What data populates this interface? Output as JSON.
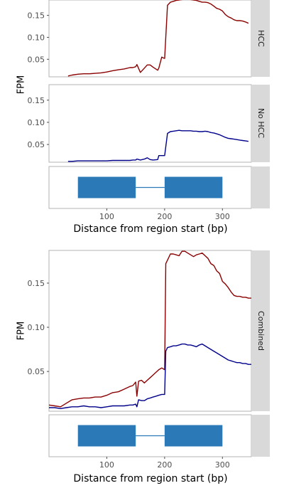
{
  "labels": {
    "fpm": "FPM",
    "distance": "Distance from region start (bp)",
    "hcc": "HCC",
    "no_hcc": "No HCC",
    "combined": "Combined"
  },
  "colors": {
    "hcc": "#8b0000",
    "no_hcc": "#00008b",
    "exon": "#2b79b6",
    "strip": "#d9d9d9",
    "border": "#b3b3b3"
  },
  "chart_data": [
    {
      "type": "line",
      "title": "",
      "facet": "HCC",
      "xlim": [
        0,
        350
      ],
      "ylim": [
        0.01,
        0.185
      ],
      "yticks": [
        0.05,
        0.1,
        0.15
      ],
      "ylabel": "FPM",
      "series": [
        {
          "color": "#8b0000",
          "x": [
            33,
            40,
            50,
            60,
            70,
            80,
            90,
            100,
            110,
            120,
            130,
            140,
            145,
            150,
            152,
            158,
            165,
            170,
            175,
            180,
            188,
            190,
            195,
            198,
            200,
            205,
            210,
            215,
            220,
            225,
            230,
            235,
            240,
            245,
            250,
            255,
            260,
            265,
            270,
            275,
            280,
            285,
            290,
            295,
            300,
            305,
            310,
            315,
            320,
            325,
            330,
            335,
            340,
            345
          ],
          "y": [
            0.012,
            0.014,
            0.016,
            0.017,
            0.017,
            0.018,
            0.019,
            0.021,
            0.024,
            0.026,
            0.028,
            0.031,
            0.031,
            0.033,
            0.038,
            0.02,
            0.03,
            0.037,
            0.037,
            0.032,
            0.025,
            0.03,
            0.055,
            0.053,
            0.052,
            0.173,
            0.18,
            0.182,
            0.184,
            0.185,
            0.186,
            0.187,
            0.187,
            0.186,
            0.185,
            0.184,
            0.182,
            0.18,
            0.18,
            0.179,
            0.176,
            0.171,
            0.166,
            0.164,
            0.16,
            0.152,
            0.147,
            0.144,
            0.14,
            0.138,
            0.138,
            0.137,
            0.135,
            0.132
          ]
        }
      ]
    },
    {
      "type": "line",
      "title": "",
      "facet": "No HCC",
      "xlim": [
        0,
        350
      ],
      "ylim": [
        0.01,
        0.185
      ],
      "yticks": [
        0.05,
        0.1,
        0.15
      ],
      "ylabel": "FPM",
      "series": [
        {
          "color": "#00008b",
          "x": [
            33,
            40,
            50,
            60,
            70,
            80,
            90,
            100,
            110,
            120,
            130,
            140,
            145,
            150,
            152,
            158,
            165,
            170,
            175,
            180,
            188,
            190,
            195,
            198,
            200,
            205,
            210,
            215,
            220,
            225,
            230,
            235,
            240,
            245,
            250,
            255,
            260,
            265,
            270,
            275,
            280,
            285,
            290,
            295,
            300,
            305,
            310,
            315,
            320,
            325,
            330,
            335,
            340,
            345
          ],
          "y": [
            0.012,
            0.012,
            0.013,
            0.013,
            0.013,
            0.013,
            0.013,
            0.013,
            0.014,
            0.014,
            0.014,
            0.014,
            0.015,
            0.015,
            0.017,
            0.015,
            0.017,
            0.02,
            0.016,
            0.015,
            0.016,
            0.025,
            0.025,
            0.025,
            0.025,
            0.075,
            0.079,
            0.08,
            0.081,
            0.082,
            0.081,
            0.081,
            0.081,
            0.081,
            0.08,
            0.08,
            0.079,
            0.079,
            0.08,
            0.079,
            0.077,
            0.076,
            0.074,
            0.072,
            0.069,
            0.066,
            0.064,
            0.063,
            0.062,
            0.061,
            0.06,
            0.059,
            0.058,
            0.057
          ]
        }
      ]
    },
    {
      "type": "line",
      "title": "",
      "facet": "Combined",
      "xlim": [
        0,
        350
      ],
      "ylim": [
        0.005,
        0.187
      ],
      "yticks": [
        0.05,
        0.1,
        0.15
      ],
      "ylabel": "FPM",
      "xticks": [
        100,
        200,
        300
      ],
      "xlabel": "Distance from region start (bp)",
      "series": [
        {
          "color": "#8b0000",
          "x": [
            0,
            10,
            20,
            30,
            40,
            50,
            60,
            70,
            80,
            90,
            100,
            110,
            120,
            130,
            140,
            145,
            150,
            152,
            155,
            160,
            165,
            170,
            175,
            180,
            185,
            190,
            195,
            200,
            202,
            205,
            210,
            215,
            220,
            225,
            230,
            235,
            240,
            245,
            250,
            255,
            260,
            265,
            270,
            275,
            280,
            285,
            290,
            295,
            300,
            305,
            310,
            315,
            320,
            325,
            330,
            335,
            340,
            345,
            350
          ],
          "y": [
            0.012,
            0.011,
            0.01,
            0.014,
            0.018,
            0.019,
            0.02,
            0.02,
            0.021,
            0.021,
            0.023,
            0.026,
            0.027,
            0.03,
            0.033,
            0.034,
            0.038,
            0.022,
            0.039,
            0.04,
            0.037,
            0.04,
            0.043,
            0.046,
            0.049,
            0.052,
            0.054,
            0.052,
            0.172,
            0.176,
            0.183,
            0.183,
            0.182,
            0.181,
            0.186,
            0.186,
            0.184,
            0.182,
            0.18,
            0.182,
            0.183,
            0.184,
            0.181,
            0.178,
            0.172,
            0.17,
            0.164,
            0.161,
            0.152,
            0.149,
            0.145,
            0.14,
            0.136,
            0.135,
            0.135,
            0.134,
            0.134,
            0.133,
            0.133
          ]
        },
        {
          "color": "#00008b",
          "x": [
            0,
            10,
            20,
            30,
            40,
            50,
            60,
            70,
            80,
            90,
            100,
            110,
            120,
            130,
            140,
            145,
            150,
            152,
            155,
            160,
            165,
            170,
            175,
            180,
            185,
            190,
            195,
            200,
            202,
            205,
            210,
            215,
            220,
            225,
            230,
            235,
            240,
            245,
            250,
            255,
            260,
            265,
            270,
            275,
            280,
            285,
            290,
            295,
            300,
            305,
            310,
            315,
            320,
            325,
            330,
            335,
            340,
            345,
            350
          ],
          "y": [
            0.009,
            0.009,
            0.008,
            0.009,
            0.01,
            0.01,
            0.011,
            0.01,
            0.01,
            0.009,
            0.01,
            0.011,
            0.011,
            0.011,
            0.012,
            0.012,
            0.013,
            0.01,
            0.018,
            0.017,
            0.017,
            0.019,
            0.02,
            0.021,
            0.022,
            0.023,
            0.024,
            0.024,
            0.073,
            0.077,
            0.078,
            0.079,
            0.079,
            0.08,
            0.081,
            0.081,
            0.08,
            0.08,
            0.079,
            0.078,
            0.08,
            0.081,
            0.079,
            0.077,
            0.075,
            0.073,
            0.071,
            0.069,
            0.067,
            0.065,
            0.063,
            0.062,
            0.061,
            0.06,
            0.06,
            0.059,
            0.059,
            0.058,
            0.058
          ]
        }
      ]
    }
  ],
  "gene_model": {
    "xlim": [
      0,
      350
    ],
    "xticks": [
      100,
      200,
      300
    ],
    "exons": [
      [
        50,
        150
      ],
      [
        200,
        300
      ]
    ],
    "intron": [
      150,
      200
    ]
  }
}
